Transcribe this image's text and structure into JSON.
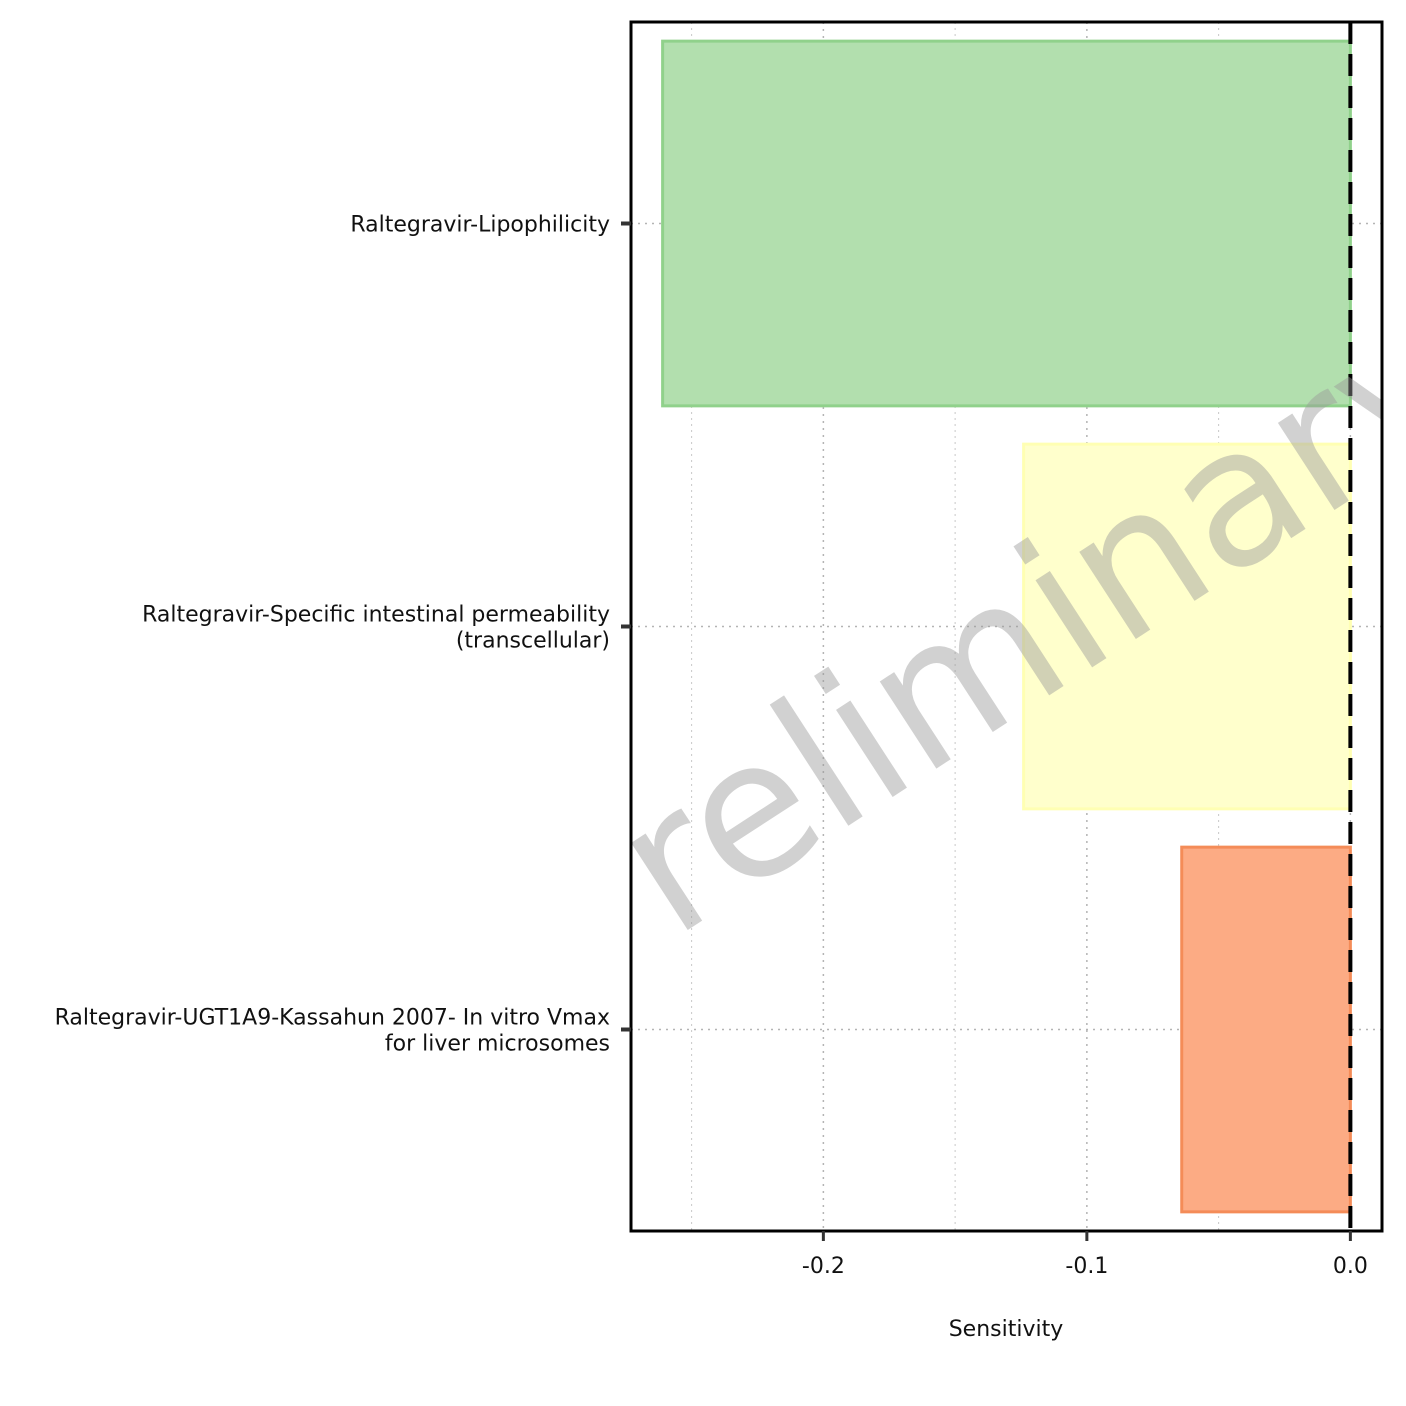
{
  "chart_data": {
    "type": "bar",
    "orientation": "horizontal",
    "title": "",
    "xlabel": "Sensitivity",
    "ylabel": "",
    "xlim": [
      -0.273,
      0.012
    ],
    "x_ticks": [
      -0.2,
      -0.1,
      0.0
    ],
    "x_tick_labels": [
      "-0.2",
      "-0.1",
      "0.0"
    ],
    "minor_gridlines": [
      -0.25,
      -0.15,
      -0.05
    ],
    "grid": "dotted",
    "legend": "none",
    "reference_line": {
      "x": 0.0,
      "style": "dashed"
    },
    "watermark": "Preliminary analysis",
    "categories": [
      [
        "Raltegravir-Lipophilicity"
      ],
      [
        "Raltegravir-Specific intestinal permeability",
        "(transcellular)"
      ],
      [
        "Raltegravir-UGT1A9-Kassahun 2007- In vitro Vmax",
        "for liver microsomes"
      ]
    ],
    "values": [
      -0.261,
      -0.124,
      -0.064
    ],
    "colors": [
      {
        "fill": "#b2dfae",
        "stroke": "#90d18b"
      },
      {
        "fill": "#ffffcc",
        "stroke": "#ffffb3"
      },
      {
        "fill": "#fcab84",
        "stroke": "#f48c58"
      }
    ]
  }
}
